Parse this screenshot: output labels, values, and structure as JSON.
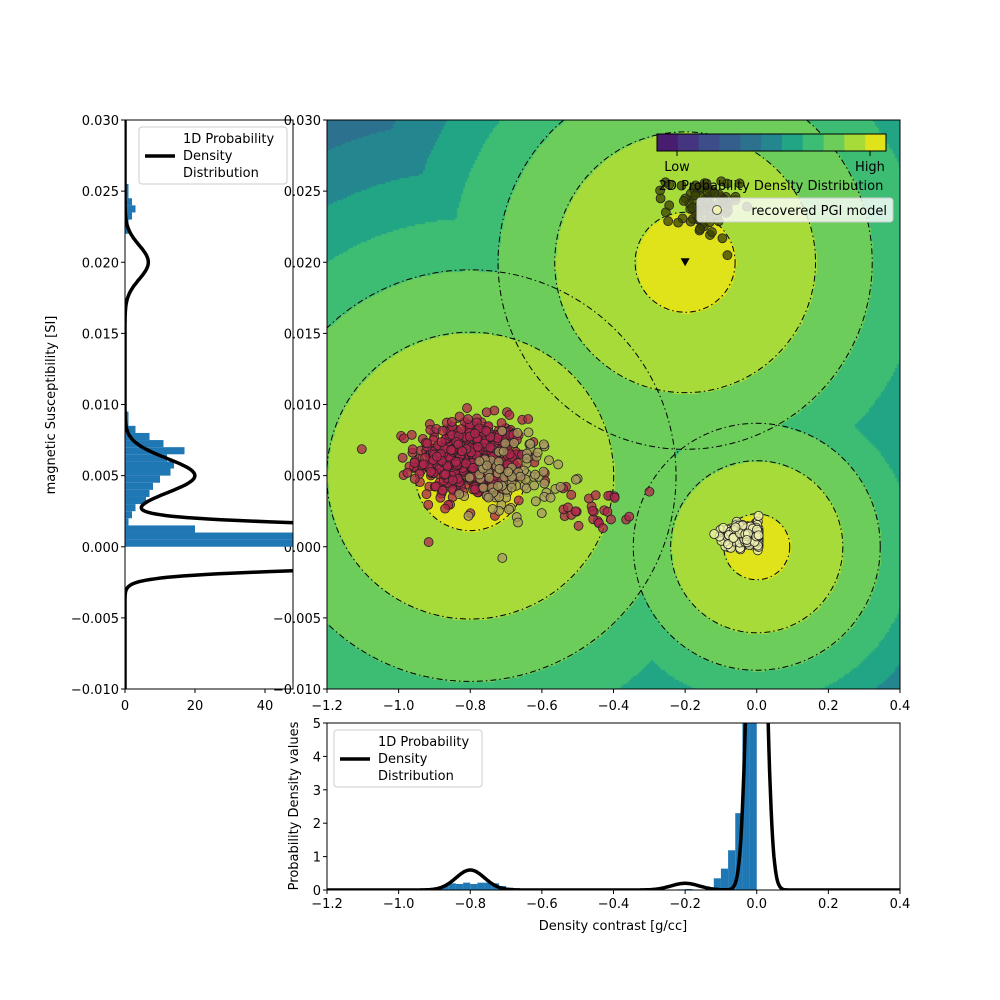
{
  "chart_data": [
    {
      "type": "heatmap",
      "name": "main",
      "title": "",
      "xlabel": "",
      "ylabel": "",
      "xlim": [
        -1.2,
        0.4
      ],
      "ylim": [
        -0.01,
        0.03
      ],
      "xticks": [
        "−1.2",
        "−1.0",
        "−0.8",
        "−0.6",
        "−0.4",
        "−0.2",
        "0.0",
        "0.2",
        "0.4"
      ],
      "xtick_values": [
        -1.2,
        -1.0,
        -0.8,
        -0.6,
        -0.4,
        -0.2,
        0.0,
        0.2,
        0.4
      ],
      "yticks": [
        "−0.010",
        "−0.005",
        "0.000",
        "0.005",
        "0.010",
        "0.015",
        "0.020",
        "0.025",
        "0.030"
      ],
      "ytick_values": [
        -0.01,
        -0.005,
        0,
        0.005,
        0.01,
        0.015,
        0.02,
        0.025,
        0.03
      ],
      "gmm_components": [
        {
          "mean": [
            -0.8,
            0.005
          ],
          "std": [
            0.04,
            0.0012
          ],
          "weight": 0.06
        },
        {
          "mean": [
            -0.2,
            0.02
          ],
          "std": [
            0.04,
            0.0012
          ],
          "weight": 0.02
        },
        {
          "mean": [
            0.0,
            0.0
          ],
          "std": [
            0.02,
            0.0008
          ],
          "weight": 0.9
        }
      ],
      "colormap": [
        "#481c6e",
        "#453581",
        "#3d4d8a",
        "#345f8d",
        "#2c728e",
        "#24868e",
        "#21a585",
        "#3dbc74",
        "#6ccd5a",
        "#a6db3a",
        "#e0e21a"
      ],
      "scatter_clusters": [
        {
          "center": [
            -0.8,
            0.0062
          ],
          "std": [
            0.075,
            0.0014
          ],
          "count": 520,
          "color": "#b0254c"
        },
        {
          "center": [
            -0.45,
            0.0028
          ],
          "std": [
            0.05,
            0.0008
          ],
          "count": 30,
          "color": "#b0254c"
        },
        {
          "center": [
            -0.68,
            0.005
          ],
          "std": [
            0.06,
            0.0015
          ],
          "count": 90,
          "color": "#a89a60"
        },
        {
          "center": [
            -0.15,
            0.0238
          ],
          "std": [
            0.05,
            0.0011
          ],
          "count": 80,
          "color": "#3a4200"
        },
        {
          "center": [
            -0.025,
            0.0008
          ],
          "std": [
            0.03,
            0.0004
          ],
          "count": 260,
          "color": "#f0f0b0"
        }
      ],
      "means_markers": [
        [
          -0.2,
          0.02
        ]
      ],
      "legend": {
        "entries": [
          "recovered PGI model"
        ],
        "colorbar_low": "Low",
        "colorbar_high": "High",
        "colorbar_label": "2D Probability Density Distribution",
        "placement": "top-right"
      }
    },
    {
      "type": "bar",
      "name": "left-histogram",
      "orientation": "horizontal",
      "xlim": [
        0,
        48
      ],
      "ylim": [
        -0.01,
        0.03
      ],
      "ylabel": "magnetic Susceptibility [SI]",
      "xticks": [
        "0",
        "20",
        "40"
      ],
      "xtick_values": [
        0,
        20,
        40
      ],
      "bin_width": 0.0005,
      "bins": [
        0.0,
        0.0005,
        0.001,
        0.0015,
        0.002,
        0.0025,
        0.003,
        0.0035,
        0.004,
        0.0045,
        0.005,
        0.0055,
        0.006,
        0.0065,
        0.007,
        0.0075,
        0.008,
        0.0085,
        0.009,
        0.022,
        0.0225,
        0.023,
        0.0235,
        0.024,
        0.0245,
        0.025
      ],
      "values": [
        60,
        60,
        20,
        1,
        2,
        3,
        6,
        7,
        8,
        10,
        13,
        14,
        12,
        17,
        11,
        7,
        3,
        1,
        1,
        1,
        1,
        2,
        3,
        2,
        1,
        1
      ],
      "legend": {
        "entries": [
          "1D Probability\nDensity\nDistribution"
        ],
        "placement": "top-right"
      }
    },
    {
      "type": "bar",
      "name": "bottom-histogram",
      "xlim": [
        -1.2,
        0.4
      ],
      "ylim": [
        0,
        5
      ],
      "xlabel": "Density contrast [g/cc]",
      "ylabel": "Probability Density values",
      "xticks": [
        "−1.2",
        "−1.0",
        "−0.8",
        "−0.6",
        "−0.4",
        "−0.2",
        "0.0",
        "0.2",
        "0.4"
      ],
      "xtick_values": [
        -1.2,
        -1.0,
        -0.8,
        -0.6,
        -0.4,
        -0.2,
        0.0,
        0.2,
        0.4
      ],
      "yticks": [
        "0",
        "1",
        "2",
        "3",
        "4",
        "5"
      ],
      "ytick_values": [
        0,
        1,
        2,
        3,
        4,
        5
      ],
      "bin_width": 0.02,
      "bins": [
        -0.9,
        -0.88,
        -0.86,
        -0.84,
        -0.82,
        -0.8,
        -0.78,
        -0.76,
        -0.74,
        -0.72,
        -0.7,
        -0.68,
        -0.66,
        -0.64,
        -0.58,
        -0.22,
        -0.2,
        -0.14,
        -0.12,
        -0.1,
        -0.08,
        -0.06,
        -0.04,
        -0.02
      ],
      "values": [
        0.06,
        0.15,
        0.2,
        0.18,
        0.22,
        0.18,
        0.22,
        0.22,
        0.2,
        0.12,
        0.07,
        0.05,
        0.04,
        0.04,
        0.04,
        0.02,
        0.03,
        0.05,
        0.35,
        0.64,
        1.19,
        2.3,
        8.0,
        18.0
      ],
      "legend": {
        "entries": [
          "1D Probability\nDensity\nDistribution"
        ],
        "placement": "top-left"
      }
    }
  ],
  "labels": {
    "legend_line": [
      "1D Probability",
      "Density",
      "Distribution"
    ]
  },
  "colors": {
    "bar": "#1f77b4",
    "line": "#000000"
  }
}
